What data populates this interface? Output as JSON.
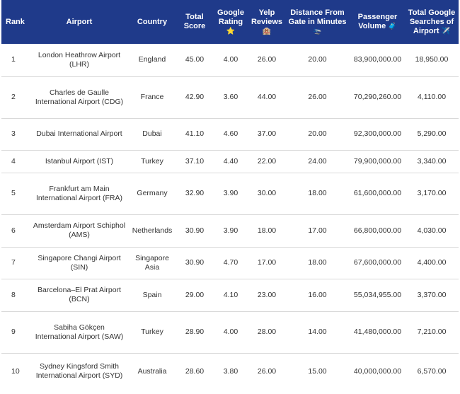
{
  "headers": {
    "rank": "Rank",
    "airport": "Airport",
    "country": "Country",
    "total_score": "Total Score",
    "google_rating": "Google Rating",
    "google_rating_icon": "⭐",
    "yelp_reviews": "Yelp Reviews",
    "yelp_reviews_icon": "🏨",
    "distance": "Distance From Gate in Minutes",
    "distance_icon": "🛬",
    "passenger_volume": "Passenger Volume",
    "passenger_volume_icon": "🧳",
    "google_searches": "Total Google Searches of Airport",
    "google_searches_icon": "✈️"
  },
  "rows": [
    {
      "rank": "1",
      "airport": "London Heathrow Airport (LHR)",
      "country": "England",
      "total_score": "45.00",
      "google_rating": "4.00",
      "yelp_reviews": "26.00",
      "distance": "20.00",
      "passenger_volume": "83,900,000.00",
      "google_searches": "18,950.00"
    },
    {
      "rank": "2",
      "airport": "Charles de Gaulle International Airport (CDG)",
      "country": "France",
      "total_score": "42.90",
      "google_rating": "3.60",
      "yelp_reviews": "44.00",
      "distance": "26.00",
      "passenger_volume": "70,290,260.00",
      "google_searches": "4,110.00"
    },
    {
      "rank": "3",
      "airport": "Dubai International Airport",
      "country": "Dubai",
      "total_score": "41.10",
      "google_rating": "4.60",
      "yelp_reviews": "37.00",
      "distance": "20.00",
      "passenger_volume": "92,300,000.00",
      "google_searches": "5,290.00"
    },
    {
      "rank": "4",
      "airport": "Istanbul Airport (IST)",
      "country": "Turkey",
      "total_score": "37.10",
      "google_rating": "4.40",
      "yelp_reviews": "22.00",
      "distance": "24.00",
      "passenger_volume": "79,900,000.00",
      "google_searches": "3,340.00"
    },
    {
      "rank": "5",
      "airport": "Frankfurt am Main International Airport (FRA)",
      "country": "Germany",
      "total_score": "32.90",
      "google_rating": "3.90",
      "yelp_reviews": "30.00",
      "distance": "18.00",
      "passenger_volume": "61,600,000.00",
      "google_searches": "3,170.00"
    },
    {
      "rank": "6",
      "airport": "Amsterdam Airport Schiphol (AMS)",
      "country": "Netherlands",
      "total_score": "30.90",
      "google_rating": "3.90",
      "yelp_reviews": "18.00",
      "distance": "17.00",
      "passenger_volume": "66,800,000.00",
      "google_searches": "4,030.00"
    },
    {
      "rank": "7",
      "airport": "Singapore Changi Airport (SIN)",
      "country": "Singapore Asia",
      "total_score": "30.90",
      "google_rating": "4.70",
      "yelp_reviews": "17.00",
      "distance": "18.00",
      "passenger_volume": "67,600,000.00",
      "google_searches": "4,400.00"
    },
    {
      "rank": "8",
      "airport": "Barcelona–El Prat Airport (BCN)",
      "country": "Spain",
      "total_score": "29.00",
      "google_rating": "4.10",
      "yelp_reviews": "23.00",
      "distance": "16.00",
      "passenger_volume": "55,034,955.00",
      "google_searches": "3,370.00"
    },
    {
      "rank": "9",
      "airport": "Sabiha Gökçen International Airport (SAW)",
      "country": "Turkey",
      "total_score": "28.90",
      "google_rating": "4.00",
      "yelp_reviews": "28.00",
      "distance": "14.00",
      "passenger_volume": "41,480,000.00",
      "google_searches": "7,210.00"
    },
    {
      "rank": "10",
      "airport": "Sydney Kingsford Smith International Airport (SYD)",
      "country": "Australia",
      "total_score": "28.60",
      "google_rating": "3.80",
      "yelp_reviews": "26.00",
      "distance": "15.00",
      "passenger_volume": "40,000,000.00",
      "google_searches": "6,570.00"
    }
  ]
}
